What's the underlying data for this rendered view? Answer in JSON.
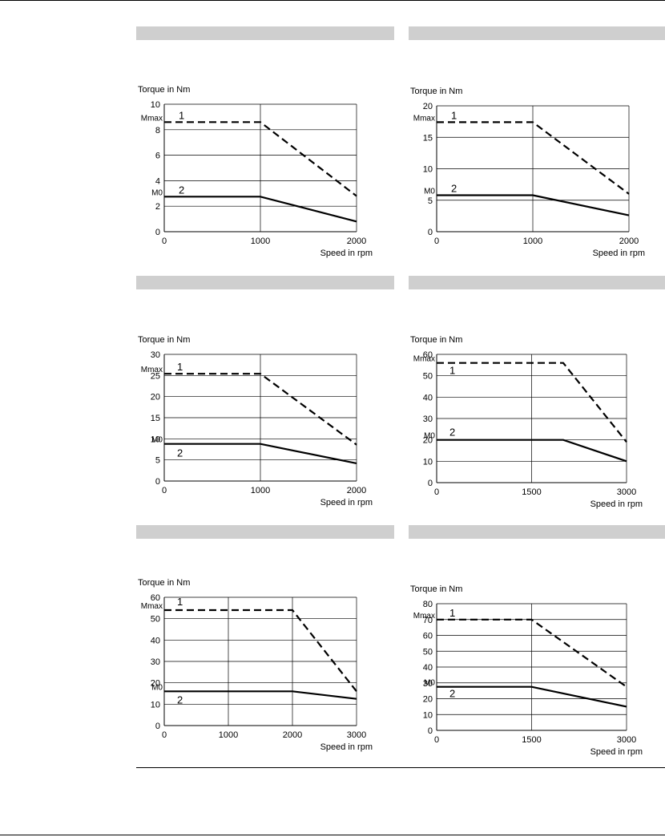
{
  "chart_data": [
    {
      "type": "line",
      "ylabel": "Torque in Nm",
      "xlabel": "Speed in rpm",
      "xlim": [
        0,
        2000
      ],
      "ylim": [
        0,
        10
      ],
      "xticks": [
        0,
        1000,
        2000
      ],
      "yticks": [
        0,
        2,
        4,
        6,
        8,
        10
      ],
      "ref_labels": [
        {
          "text": "Mmax",
          "y": 8.6
        },
        {
          "text": "M0",
          "y": 2.75
        }
      ],
      "series": [
        {
          "name": "1",
          "style": "dashed",
          "x": [
            0,
            1000,
            2000
          ],
          "y": [
            8.6,
            8.6,
            2.8
          ]
        },
        {
          "name": "2",
          "style": "solid",
          "x": [
            0,
            1000,
            2000
          ],
          "y": [
            2.75,
            2.75,
            0.8
          ]
        }
      ]
    },
    {
      "type": "line",
      "ylabel": "Torque in Nm",
      "xlabel": "Speed in rpm",
      "xlim": [
        0,
        2000
      ],
      "ylim": [
        0,
        20
      ],
      "xticks": [
        0,
        1000,
        2000
      ],
      "yticks": [
        0,
        5,
        10,
        15,
        20
      ],
      "ref_labels": [
        {
          "text": "Mmax",
          "y": 17.4
        },
        {
          "text": "M0",
          "y": 5.8
        }
      ],
      "series": [
        {
          "name": "1",
          "style": "dashed",
          "x": [
            0,
            1000,
            2000
          ],
          "y": [
            17.4,
            17.4,
            6.0
          ]
        },
        {
          "name": "2",
          "style": "solid",
          "x": [
            0,
            1000,
            2000
          ],
          "y": [
            5.8,
            5.8,
            2.6
          ]
        }
      ]
    },
    {
      "type": "line",
      "ylabel": "Torque in Nm",
      "xlabel": "Speed in rpm",
      "xlim": [
        0,
        2000
      ],
      "ylim": [
        0,
        30
      ],
      "xticks": [
        0,
        1000,
        2000
      ],
      "yticks": [
        0,
        5,
        10,
        15,
        20,
        25,
        30
      ],
      "ref_labels": [
        {
          "text": "Mmax",
          "y": 25.4
        },
        {
          "text": "M0",
          "y": 8.8
        }
      ],
      "series": [
        {
          "name": "1",
          "style": "dashed",
          "x": [
            0,
            1000,
            2000
          ],
          "y": [
            25.4,
            25.4,
            8.6
          ]
        },
        {
          "name": "2",
          "style": "solid",
          "x": [
            0,
            1000,
            2000
          ],
          "y": [
            8.8,
            8.8,
            4.2
          ]
        }
      ]
    },
    {
      "type": "line",
      "ylabel": "Torque in Nm",
      "xlabel": "Speed in rpm",
      "xlim": [
        0,
        3000
      ],
      "ylim": [
        0,
        60
      ],
      "xticks": [
        0,
        1500,
        3000
      ],
      "yticks": [
        0,
        10,
        20,
        30,
        40,
        50,
        60
      ],
      "ref_labels": [
        {
          "text": "Mmax",
          "y": 56
        },
        {
          "text": "M0",
          "y": 20
        }
      ],
      "series": [
        {
          "name": "1",
          "style": "dashed",
          "x": [
            0,
            2000,
            3000
          ],
          "y": [
            56,
            56,
            19
          ]
        },
        {
          "name": "2",
          "style": "solid",
          "x": [
            0,
            2000,
            3000
          ],
          "y": [
            20,
            20,
            10
          ]
        }
      ]
    },
    {
      "type": "line",
      "ylabel": "Torque in Nm",
      "xlabel": "Speed in rpm",
      "xlim": [
        0,
        3000
      ],
      "ylim": [
        0,
        60
      ],
      "xticks": [
        0,
        1000,
        2000,
        3000
      ],
      "yticks": [
        0,
        10,
        20,
        30,
        40,
        50,
        60
      ],
      "ref_labels": [
        {
          "text": "Mmax",
          "y": 54
        },
        {
          "text": "M0",
          "y": 16
        }
      ],
      "series": [
        {
          "name": "1",
          "style": "dashed",
          "x": [
            0,
            2000,
            3000
          ],
          "y": [
            54,
            54,
            16
          ]
        },
        {
          "name": "2",
          "style": "solid",
          "x": [
            0,
            2000,
            3000
          ],
          "y": [
            16,
            16,
            12.5
          ]
        }
      ]
    },
    {
      "type": "line",
      "ylabel": "Torque in Nm",
      "xlabel": "Speed in rpm",
      "xlim": [
        0,
        3000
      ],
      "ylim": [
        0,
        80
      ],
      "xticks": [
        0,
        1500,
        3000
      ],
      "yticks": [
        0,
        10,
        20,
        30,
        40,
        50,
        60,
        70,
        80
      ],
      "ref_labels": [
        {
          "text": "Mmax",
          "y": 70
        },
        {
          "text": "M0",
          "y": 27.5
        }
      ],
      "series": [
        {
          "name": "1",
          "style": "dashed",
          "x": [
            0,
            1500,
            3000
          ],
          "y": [
            70,
            70,
            27.5
          ]
        },
        {
          "name": "2",
          "style": "solid",
          "x": [
            0,
            1500,
            3000
          ],
          "y": [
            27.5,
            27.5,
            15
          ]
        }
      ]
    }
  ]
}
